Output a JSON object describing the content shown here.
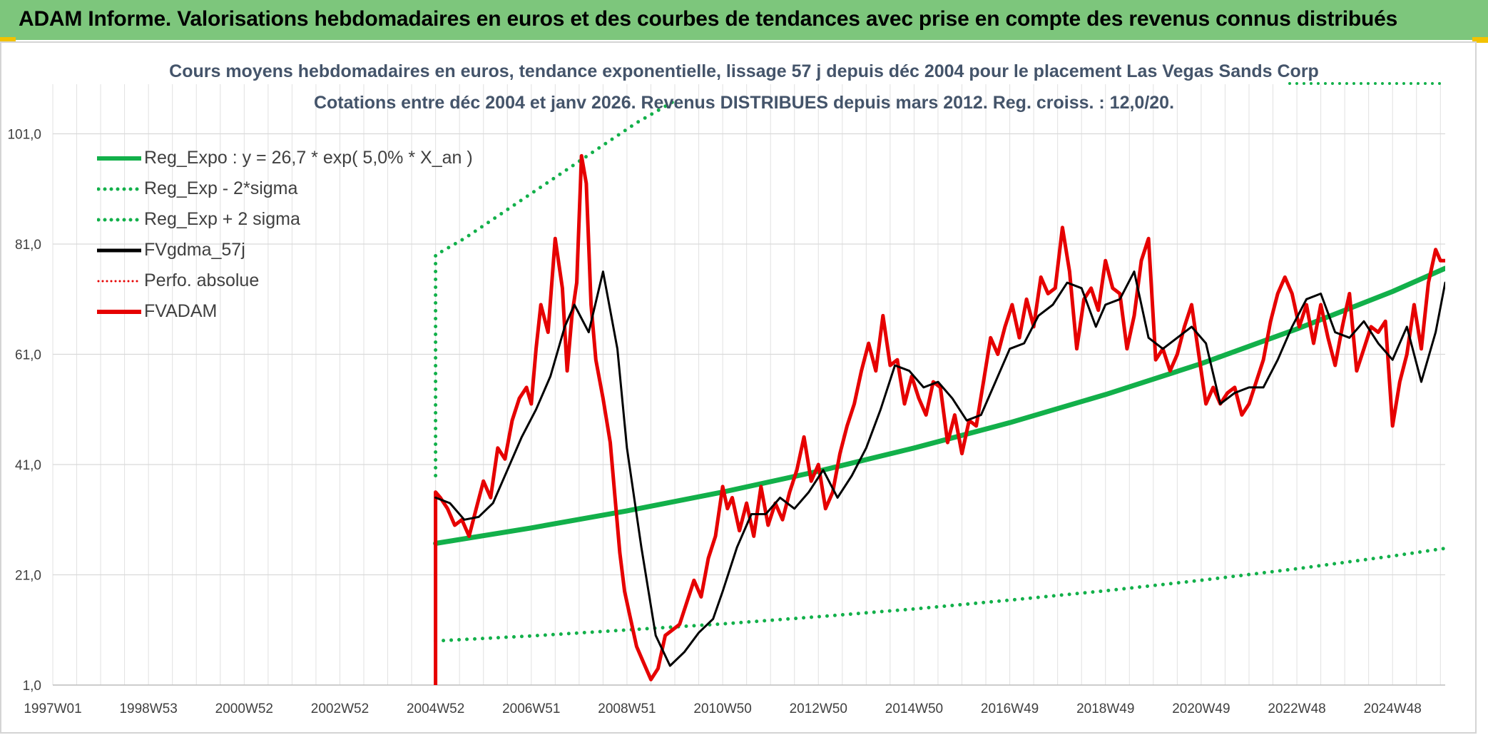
{
  "banner": {
    "title": "ADAM Informe. Valorisations hebdomadaires en euros et des courbes de tendances avec prise en compte des revenus connus distribués",
    "color": "#7dc67c"
  },
  "chart_data": {
    "type": "line",
    "title": "Cours moyens hebdomadaires en euros, tendance exponentielle, lissage 57 j depuis déc 2004 pour le placement Las Vegas Sands Corp",
    "subtitle": "Cotations entre déc 2004 et janv 2026. Revenus DISTRIBUES depuis mars 2012. Reg. croiss. : 12,0/20.",
    "xlabel": "",
    "ylabel": "",
    "xlim": [
      1997.0,
      2026.1
    ],
    "ylim": [
      1.0,
      110.0
    ],
    "y_ticks": [
      "1,0",
      "21,0",
      "41,0",
      "61,0",
      "81,0",
      "101,0"
    ],
    "y_tick_values": [
      1,
      21,
      41,
      61,
      81,
      101
    ],
    "x_ticks": [
      "1997W01",
      "1998W53",
      "2000W52",
      "2002W52",
      "2004W52",
      "2006W51",
      "2008W51",
      "2010W50",
      "2012W50",
      "2014W50",
      "2016W49",
      "2018W49",
      "2020W49",
      "2022W48",
      "2024W48"
    ],
    "x_tick_values": [
      1997.0,
      1999.0,
      2001.0,
      2003.0,
      2005.0,
      2007.0,
      2009.0,
      2011.0,
      2013.0,
      2015.0,
      2017.0,
      2019.0,
      2021.0,
      2023.0,
      2025.0
    ],
    "grid": true,
    "legend_position": "top-left",
    "series": [
      {
        "name": "Reg_Expo : y = 26,7 * exp( 5,0% *  X_an )",
        "color": "#12b04a",
        "style": "solid",
        "x": [
          2005.0,
          2007.0,
          2009.0,
          2011.0,
          2013.0,
          2015.0,
          2017.0,
          2019.0,
          2021.0,
          2023.0,
          2025.0,
          2026.1
        ],
        "values": [
          26.7,
          29.5,
          32.6,
          36.0,
          39.8,
          44.0,
          48.6,
          53.7,
          59.3,
          65.6,
          72.4,
          76.6
        ]
      },
      {
        "name": "Reg_Exp - 2*sigma",
        "color": "#12b04a",
        "style": "dotted",
        "x": [
          2005.0,
          2007.0,
          2009.0,
          2011.0,
          2013.0,
          2015.0,
          2017.0,
          2019.0,
          2021.0,
          2023.0,
          2025.0,
          2026.1
        ],
        "values": [
          9.0,
          9.9,
          11.0,
          12.1,
          13.4,
          14.8,
          16.4,
          18.1,
          20.0,
          22.1,
          24.4,
          25.8
        ]
      },
      {
        "name": "Reg_Exp + 2 sigma",
        "color": "#12b04a",
        "style": "dotted",
        "x": [
          2005.0,
          2005.0,
          2005.6,
          2006.2,
          2006.8,
          2007.4,
          2008.0,
          2008.6,
          2009.2,
          2010.0
        ],
        "values": [
          39.0,
          79.0,
          82.0,
          85.5,
          89.0,
          92.5,
          96.0,
          99.5,
          103.0,
          107.0
        ]
      },
      {
        "name": "FVgdma_57j",
        "color": "#000000",
        "style": "solid",
        "x": [
          2005.0,
          2005.3,
          2005.6,
          2005.9,
          2006.2,
          2006.5,
          2006.8,
          2007.1,
          2007.4,
          2007.7,
          2007.9,
          2008.2,
          2008.5,
          2008.8,
          2009.0,
          2009.3,
          2009.6,
          2009.9,
          2010.2,
          2010.5,
          2010.8,
          2011.0,
          2011.3,
          2011.6,
          2011.9,
          2012.2,
          2012.5,
          2012.8,
          2013.1,
          2013.4,
          2013.7,
          2014.0,
          2014.3,
          2014.6,
          2014.9,
          2015.2,
          2015.5,
          2015.8,
          2016.1,
          2016.4,
          2016.7,
          2017.0,
          2017.3,
          2017.6,
          2017.9,
          2018.2,
          2018.5,
          2018.8,
          2019.0,
          2019.3,
          2019.6,
          2019.9,
          2020.2,
          2020.5,
          2020.8,
          2021.1,
          2021.4,
          2021.7,
          2022.0,
          2022.3,
          2022.6,
          2022.9,
          2023.2,
          2023.5,
          2023.8,
          2024.1,
          2024.4,
          2024.7,
          2025.0,
          2025.3,
          2025.6,
          2025.9,
          2026.1
        ],
        "values": [
          35.0,
          34.0,
          31.0,
          31.5,
          34.0,
          40.0,
          46.0,
          51.0,
          57.0,
          66.0,
          70.0,
          65.0,
          76.0,
          62.0,
          44.0,
          26.0,
          10.0,
          4.5,
          7.0,
          10.5,
          13.0,
          18.0,
          26.0,
          32.0,
          32.0,
          35.0,
          33.0,
          36.0,
          40.0,
          35.0,
          39.0,
          44.0,
          51.0,
          59.0,
          58.0,
          55.0,
          56.0,
          53.0,
          49.0,
          50.0,
          56.0,
          62.0,
          63.0,
          68.0,
          70.0,
          74.0,
          73.0,
          66.0,
          70.0,
          71.0,
          76.0,
          64.0,
          62.0,
          64.0,
          66.0,
          63.0,
          52.0,
          54.0,
          55.0,
          55.0,
          60.0,
          66.0,
          71.0,
          72.0,
          65.0,
          64.0,
          67.0,
          63.0,
          60.0,
          66.0,
          56.0,
          65.0,
          74.0
        ]
      },
      {
        "name": "Perfo. absolue",
        "color": "#e60000",
        "style": "dotted",
        "x": [],
        "values": []
      },
      {
        "name": "FVADAM",
        "color": "#e60000",
        "style": "solid",
        "x": [
          2005.0,
          2005.0,
          2005.1,
          2005.25,
          2005.4,
          2005.55,
          2005.7,
          2005.85,
          2006.0,
          2006.15,
          2006.3,
          2006.45,
          2006.6,
          2006.75,
          2006.9,
          2007.0,
          2007.1,
          2007.2,
          2007.35,
          2007.5,
          2007.65,
          2007.75,
          2007.85,
          2007.95,
          2008.05,
          2008.15,
          2008.25,
          2008.35,
          2008.5,
          2008.65,
          2008.75,
          2008.85,
          2008.95,
          2009.05,
          2009.2,
          2009.35,
          2009.5,
          2009.65,
          2009.8,
          2009.95,
          2010.1,
          2010.25,
          2010.4,
          2010.55,
          2010.7,
          2010.85,
          2011.0,
          2011.1,
          2011.2,
          2011.35,
          2011.5,
          2011.65,
          2011.8,
          2011.95,
          2012.1,
          2012.25,
          2012.4,
          2012.55,
          2012.7,
          2012.85,
          2013.0,
          2013.15,
          2013.3,
          2013.45,
          2013.6,
          2013.75,
          2013.9,
          2014.05,
          2014.2,
          2014.35,
          2014.5,
          2014.65,
          2014.8,
          2014.95,
          2015.1,
          2015.25,
          2015.4,
          2015.55,
          2015.7,
          2015.85,
          2016.0,
          2016.15,
          2016.3,
          2016.45,
          2016.6,
          2016.75,
          2016.9,
          2017.05,
          2017.2,
          2017.35,
          2017.5,
          2017.65,
          2017.8,
          2017.95,
          2018.1,
          2018.25,
          2018.4,
          2018.55,
          2018.7,
          2018.85,
          2019.0,
          2019.15,
          2019.3,
          2019.45,
          2019.6,
          2019.75,
          2019.9,
          2020.05,
          2020.2,
          2020.35,
          2020.5,
          2020.65,
          2020.8,
          2020.95,
          2021.1,
          2021.25,
          2021.4,
          2021.55,
          2021.7,
          2021.85,
          2022.0,
          2022.15,
          2022.3,
          2022.45,
          2022.6,
          2022.75,
          2022.9,
          2023.05,
          2023.2,
          2023.35,
          2023.5,
          2023.65,
          2023.8,
          2023.95,
          2024.1,
          2024.25,
          2024.4,
          2024.55,
          2024.7,
          2024.85,
          2025.0,
          2025.15,
          2025.3,
          2025.45,
          2025.6,
          2025.75,
          2025.9,
          2026.0,
          2026.1
        ],
        "values": [
          1.0,
          36.0,
          35.0,
          33.0,
          30.0,
          31.0,
          28.0,
          33.0,
          38.0,
          35.0,
          44.0,
          42.0,
          49.0,
          53.0,
          55.0,
          52.0,
          62.0,
          70.0,
          65.0,
          82.0,
          73.0,
          58.0,
          68.0,
          74.0,
          97.0,
          92.0,
          70.0,
          60.0,
          53.0,
          45.0,
          35.0,
          25.0,
          18.0,
          14.0,
          8.0,
          5.0,
          2.0,
          4.0,
          10.0,
          11.0,
          12.0,
          16.0,
          20.0,
          17.0,
          24.0,
          28.0,
          37.0,
          33.0,
          35.0,
          29.0,
          34.0,
          28.0,
          37.0,
          30.0,
          34.0,
          31.0,
          36.0,
          40.0,
          46.0,
          38.0,
          41.0,
          33.0,
          36.0,
          43.0,
          48.0,
          52.0,
          58.0,
          63.0,
          58.0,
          68.0,
          59.0,
          60.0,
          52.0,
          57.0,
          53.0,
          50.0,
          56.0,
          55.0,
          45.0,
          50.0,
          43.0,
          49.0,
          48.0,
          56.0,
          64.0,
          61.0,
          66.0,
          70.0,
          64.0,
          71.0,
          66.0,
          75.0,
          72.0,
          73.0,
          84.0,
          76.0,
          62.0,
          71.0,
          73.0,
          69.0,
          78.0,
          73.0,
          72.0,
          62.0,
          68.0,
          78.0,
          82.0,
          60.0,
          62.0,
          58.0,
          61.0,
          66.0,
          70.0,
          61.0,
          52.0,
          55.0,
          52.0,
          54.0,
          55.0,
          50.0,
          52.0,
          56.0,
          60.0,
          67.0,
          72.0,
          75.0,
          72.0,
          66.0,
          70.0,
          63.0,
          70.0,
          64.0,
          59.0,
          66.0,
          72.0,
          58.0,
          62.0,
          66.0,
          65.0,
          67.0,
          48.0,
          56.0,
          61.0,
          70.0,
          62.0,
          74.0,
          80.0,
          78.0,
          78.0
        ]
      }
    ]
  }
}
